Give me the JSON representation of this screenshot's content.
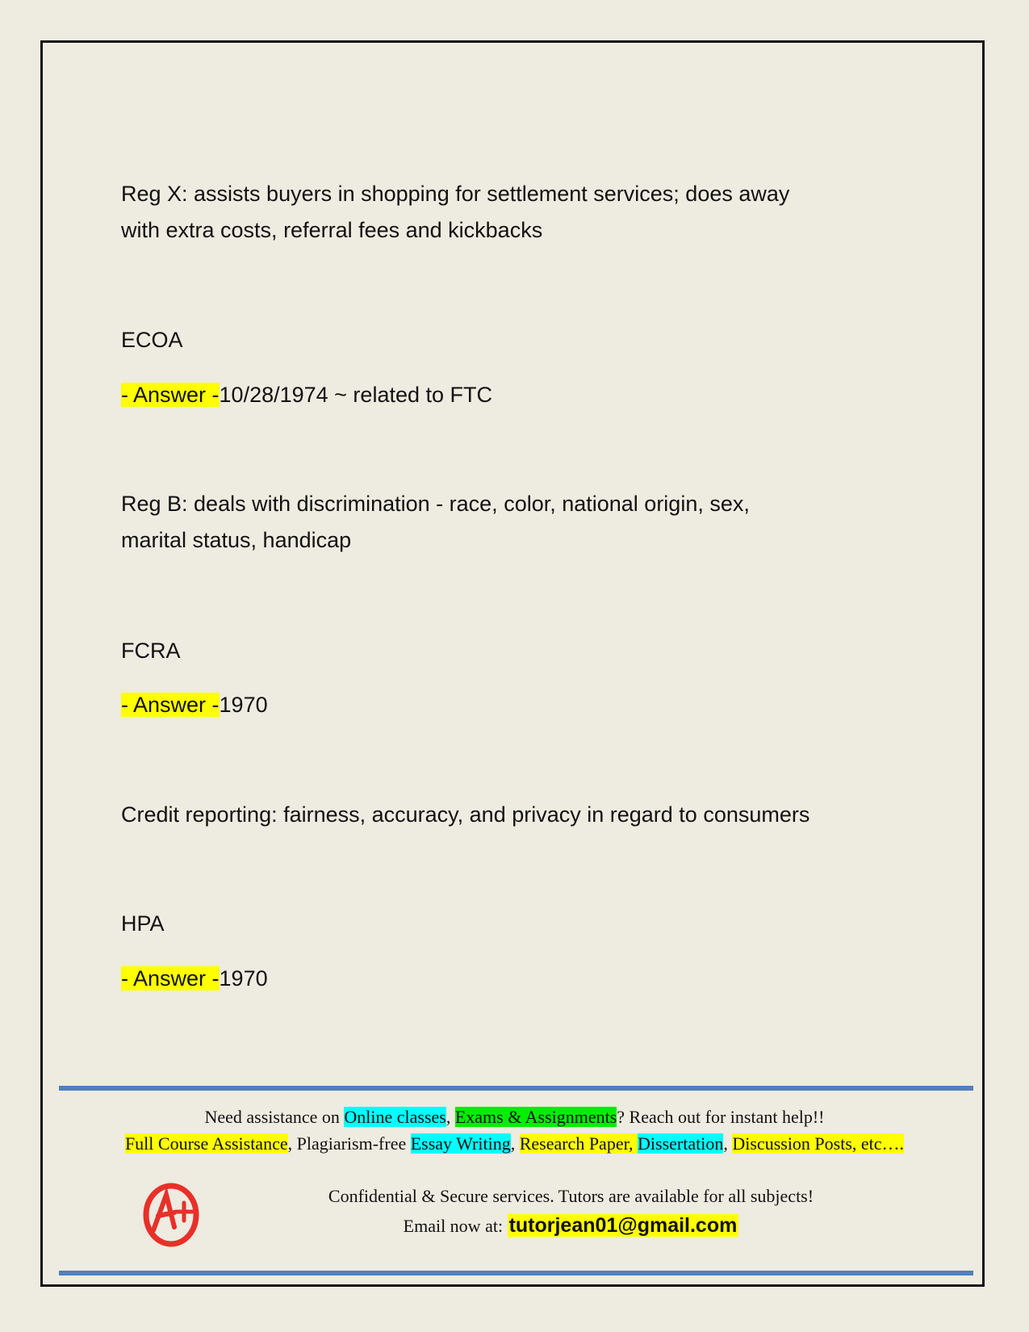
{
  "entries": [
    {
      "lines": [
        "Reg X: assists buyers in shopping for settlement services; does away",
        "with extra costs, referral fees and kickbacks"
      ]
    },
    {
      "term": "ECOA",
      "answer_label": "- Answer -",
      "answer": "10/28/1974 ~ related to FTC"
    },
    {
      "lines": [
        "Reg B: deals with discrimination - race, color, national origin, sex,",
        "marital status, handicap"
      ]
    },
    {
      "term": "FCRA",
      "answer_label": "- Answer -",
      "answer": "1970"
    },
    {
      "lines": [
        "Credit reporting: fairness, accuracy, and privacy in regard to consumers"
      ]
    },
    {
      "term": "HPA",
      "answer_label": "- Answer -",
      "answer": "1970"
    }
  ],
  "footer": {
    "line1": [
      "Need assistance on ",
      "Online classes",
      ", ",
      "Exams & Assignments",
      "? Reach out for instant help!!"
    ],
    "line2": [
      "Full Course Assistance",
      ", Plagiarism-free ",
      "Essay Writing",
      ", ",
      "Research Paper, ",
      "Dissertation",
      ", ",
      "Discussion Posts, etc…."
    ],
    "line3": "Confidential & Secure services. Tutors are available for all subjects!",
    "email_label": "Email now at: ",
    "email": "tutorjean01@gmail.com",
    "logo_text": "A+"
  },
  "colors": {
    "highlight_yellow": "#ffff00",
    "highlight_cyan": "#00ffff",
    "highlight_green": "#00ee00",
    "rule_blue": "#4f81bd",
    "logo_red": "#e8302a"
  }
}
